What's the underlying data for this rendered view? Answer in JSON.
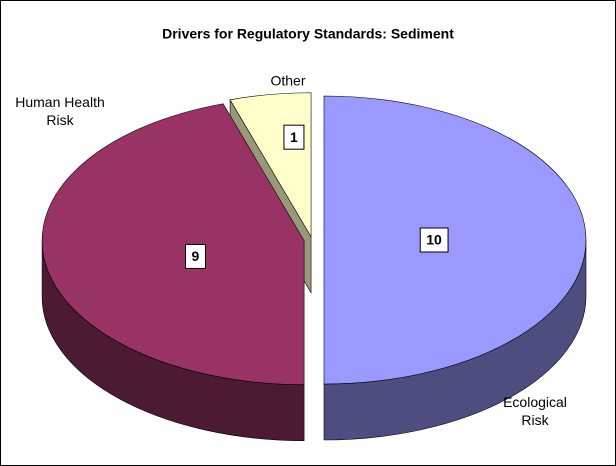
{
  "chart_data": {
    "type": "pie3d",
    "title": "Drivers for Regulatory Standards:  Sediment",
    "categories": [
      "Ecological Risk",
      "Human Health Risk",
      "Other"
    ],
    "values": [
      10,
      9,
      1
    ],
    "colors": [
      "#9999ff",
      "#993366",
      "#ffffcc"
    ]
  }
}
